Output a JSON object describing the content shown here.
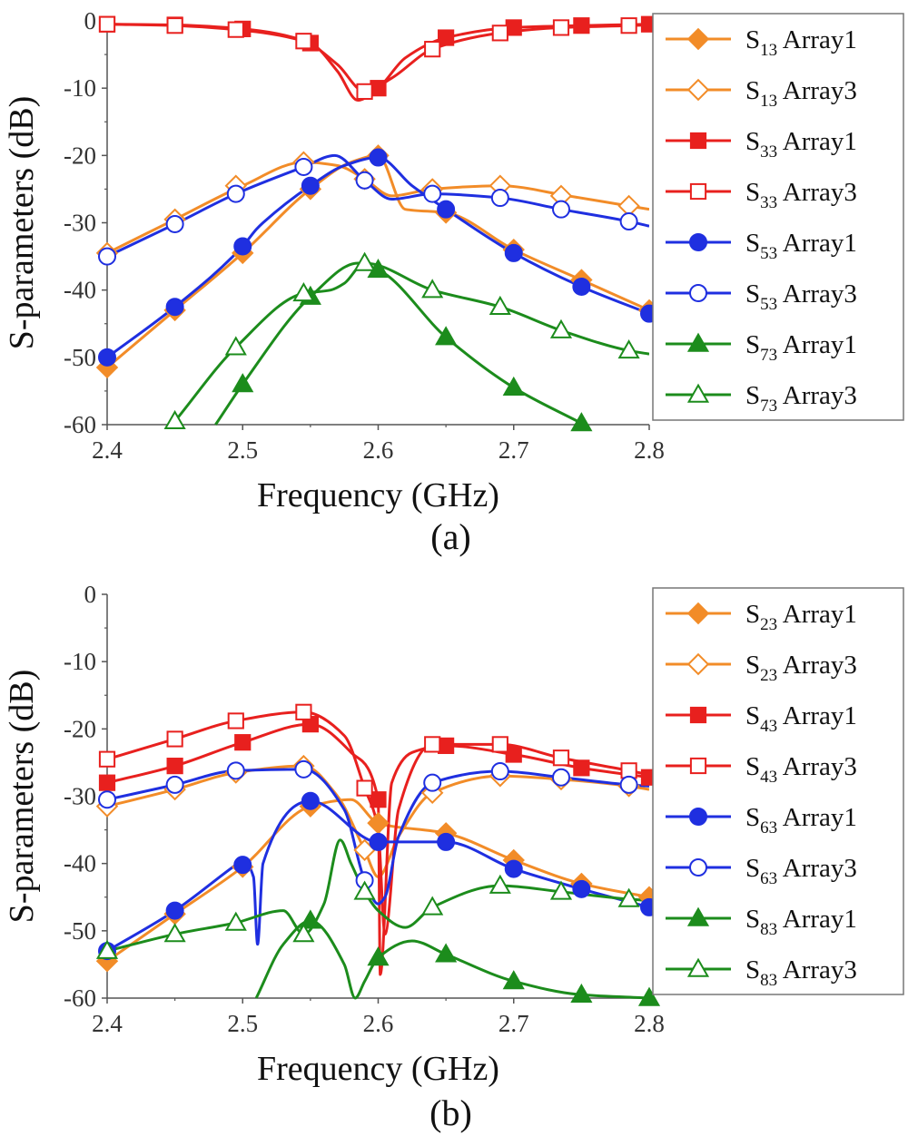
{
  "chart_data": [
    {
      "type": "line",
      "panel_label": "(a)",
      "xlabel": "Frequency (GHz)",
      "ylabel": "S-parameters (dB)",
      "xlim": [
        2.4,
        2.8
      ],
      "ylim": [
        -60,
        0
      ],
      "xticks": [
        "2.4",
        "2.5",
        "2.6",
        "2.7",
        "2.8"
      ],
      "yticks": [
        "0",
        "-10",
        "-20",
        "-30",
        "-40",
        "-50",
        "-60"
      ],
      "legend_position": "right",
      "series": [
        {
          "name": "S13 Array1",
          "base": "S",
          "sub": "13",
          "suffix": "Array1",
          "color": "#F28C28",
          "marker": "diamond",
          "filled": true,
          "x": [
            2.4,
            2.45,
            2.5,
            2.55,
            2.58,
            2.6,
            2.62,
            2.65,
            2.7,
            2.75,
            2.8
          ],
          "y": [
            -51.5,
            -43,
            -34.5,
            -25,
            -21,
            -20,
            -28,
            -28.5,
            -34,
            -38.5,
            -43
          ],
          "mx": [
            2.4,
            2.45,
            2.5,
            2.55,
            2.6,
            2.65,
            2.7,
            2.75,
            2.8
          ],
          "my": [
            -51.5,
            -43,
            -34.5,
            -25,
            -20,
            -28.5,
            -34,
            -38.5,
            -43
          ]
        },
        {
          "name": "S13 Array3",
          "base": "S",
          "sub": "13",
          "suffix": "Array3",
          "color": "#F28C28",
          "marker": "diamond",
          "filled": false,
          "x": [
            2.4,
            2.45,
            2.5,
            2.545,
            2.57,
            2.59,
            2.61,
            2.64,
            2.69,
            2.74,
            2.785,
            2.8
          ],
          "y": [
            -34.5,
            -29.5,
            -24.5,
            -21,
            -21.5,
            -23.5,
            -26,
            -25,
            -24.5,
            -26,
            -27.5,
            -28
          ],
          "mx": [
            2.4,
            2.45,
            2.495,
            2.545,
            2.59,
            2.64,
            2.69,
            2.735,
            2.785
          ],
          "my": [
            -34.5,
            -29.5,
            -24.5,
            -21,
            -23.5,
            -25,
            -24.5,
            -26,
            -27.5
          ]
        },
        {
          "name": "S33 Array1",
          "base": "S",
          "sub": "33",
          "suffix": "Array1",
          "color": "#E8201E",
          "marker": "square",
          "filled": true,
          "x": [
            2.4,
            2.45,
            2.5,
            2.55,
            2.57,
            2.585,
            2.6,
            2.62,
            2.65,
            2.7,
            2.75,
            2.8
          ],
          "y": [
            -0.5,
            -0.6,
            -1.2,
            -3.3,
            -7.5,
            -11.8,
            -10,
            -5.5,
            -2.5,
            -1,
            -0.7,
            -0.5
          ],
          "mx": [
            2.4,
            2.45,
            2.5,
            2.55,
            2.6,
            2.65,
            2.7,
            2.75,
            2.8
          ],
          "my": [
            -0.5,
            -0.6,
            -1.2,
            -3.3,
            -10,
            -2.5,
            -1,
            -0.7,
            -0.5
          ]
        },
        {
          "name": "S33 Array3",
          "base": "S",
          "sub": "33",
          "suffix": "Array3",
          "color": "#E8201E",
          "marker": "square",
          "filled": false,
          "x": [
            2.4,
            2.45,
            2.495,
            2.545,
            2.57,
            2.59,
            2.61,
            2.64,
            2.69,
            2.735,
            2.785,
            2.8
          ],
          "y": [
            -0.5,
            -0.7,
            -1.3,
            -3,
            -6.5,
            -10.5,
            -8.5,
            -4.2,
            -1.8,
            -1,
            -0.7,
            -0.6
          ],
          "mx": [
            2.4,
            2.45,
            2.495,
            2.545,
            2.59,
            2.64,
            2.69,
            2.735,
            2.785
          ],
          "my": [
            -0.5,
            -0.7,
            -1.3,
            -3,
            -10.5,
            -4.2,
            -1.8,
            -1,
            -0.7
          ]
        },
        {
          "name": "S53 Array1",
          "base": "S",
          "sub": "53",
          "suffix": "Array1",
          "color": "#1F2FE0",
          "marker": "circle",
          "filled": true,
          "x": [
            2.4,
            2.45,
            2.5,
            2.51,
            2.515,
            2.55,
            2.575,
            2.6,
            2.625,
            2.65,
            2.7,
            2.75,
            2.8
          ],
          "y": [
            -50,
            -42.5,
            -33.5,
            -31,
            -30,
            -24.5,
            -21.5,
            -20.3,
            -24.5,
            -28,
            -34.5,
            -39.5,
            -43.5
          ],
          "mx": [
            2.4,
            2.45,
            2.5,
            2.55,
            2.6,
            2.65,
            2.7,
            2.75,
            2.8
          ],
          "my": [
            -50,
            -42.5,
            -33.5,
            -24.5,
            -20.3,
            -28,
            -34.5,
            -39.5,
            -43.5
          ]
        },
        {
          "name": "S53 Array3",
          "base": "S",
          "sub": "53",
          "suffix": "Array3",
          "color": "#1F2FE0",
          "marker": "circle",
          "filled": false,
          "x": [
            2.4,
            2.45,
            2.495,
            2.545,
            2.568,
            2.59,
            2.61,
            2.64,
            2.69,
            2.735,
            2.785,
            2.8
          ],
          "y": [
            -35,
            -30.2,
            -25.7,
            -21.7,
            -20,
            -23.7,
            -26.5,
            -25.7,
            -26.3,
            -28,
            -29.8,
            -30.5
          ],
          "mx": [
            2.4,
            2.45,
            2.495,
            2.545,
            2.59,
            2.64,
            2.69,
            2.735,
            2.785
          ],
          "my": [
            -35,
            -30.2,
            -25.7,
            -21.7,
            -23.7,
            -25.7,
            -26.3,
            -28,
            -29.8
          ]
        },
        {
          "name": "S73 Array1",
          "base": "S",
          "sub": "73",
          "suffix": "Array1",
          "color": "#1C8C1C",
          "marker": "triangle",
          "filled": true,
          "x": [
            2.48,
            2.5,
            2.55,
            2.585,
            2.6,
            2.65,
            2.7,
            2.75
          ],
          "y": [
            -60,
            -54,
            -41,
            -36,
            -37,
            -47,
            -54.5,
            -59.8
          ],
          "mx": [
            2.5,
            2.55,
            2.6,
            2.65,
            2.7,
            2.75
          ],
          "my": [
            -54,
            -41,
            -37,
            -47,
            -54.5,
            -59.8
          ]
        },
        {
          "name": "S73 Array3",
          "base": "S",
          "sub": "73",
          "suffix": "Array3",
          "color": "#1C8C1C",
          "marker": "triangle",
          "filled": false,
          "x": [
            2.45,
            2.495,
            2.545,
            2.565,
            2.575,
            2.59,
            2.64,
            2.69,
            2.735,
            2.785,
            2.8
          ],
          "y": [
            -59.5,
            -48.5,
            -40.5,
            -40,
            -39,
            -36,
            -40,
            -42.5,
            -46,
            -49,
            -49.5
          ],
          "mx": [
            2.45,
            2.495,
            2.545,
            2.59,
            2.64,
            2.69,
            2.735,
            2.785
          ],
          "my": [
            -59.5,
            -48.5,
            -40.5,
            -36,
            -40,
            -42.5,
            -46,
            -49
          ]
        }
      ]
    },
    {
      "type": "line",
      "panel_label": "(b)",
      "xlabel": "Frequency (GHz)",
      "ylabel": "S-parameters (dB)",
      "xlim": [
        2.4,
        2.8
      ],
      "ylim": [
        -60,
        0
      ],
      "xticks": [
        "2.4",
        "2.5",
        "2.6",
        "2.7",
        "2.8"
      ],
      "yticks": [
        "0",
        "-10",
        "-20",
        "-30",
        "-40",
        "-50",
        "-60"
      ],
      "legend_position": "right",
      "series": [
        {
          "name": "S23 Array1",
          "base": "S",
          "sub": "23",
          "suffix": "Array1",
          "color": "#F28C28",
          "marker": "diamond",
          "filled": true,
          "x": [
            2.4,
            2.45,
            2.5,
            2.55,
            2.58,
            2.6,
            2.65,
            2.7,
            2.75,
            2.8
          ],
          "y": [
            -54.5,
            -47.5,
            -40.5,
            -31.5,
            -30.5,
            -34,
            -35.5,
            -39.5,
            -43,
            -45
          ],
          "mx": [
            2.4,
            2.45,
            2.5,
            2.55,
            2.6,
            2.65,
            2.7,
            2.75,
            2.8
          ],
          "my": [
            -54.5,
            -47.5,
            -40.5,
            -31.5,
            -34,
            -35.5,
            -39.5,
            -43,
            -45
          ]
        },
        {
          "name": "S23 Array3",
          "base": "S",
          "sub": "23",
          "suffix": "Array3",
          "color": "#F28C28",
          "marker": "diamond",
          "filled": false,
          "x": [
            2.4,
            2.45,
            2.495,
            2.545,
            2.57,
            2.59,
            2.6,
            2.615,
            2.64,
            2.69,
            2.735,
            2.785,
            2.8
          ],
          "y": [
            -31.5,
            -29,
            -26.5,
            -25.5,
            -30,
            -38,
            -42,
            -36,
            -29.5,
            -27,
            -27.5,
            -28.5,
            -29
          ],
          "mx": [
            2.4,
            2.45,
            2.495,
            2.545,
            2.59,
            2.64,
            2.69,
            2.735,
            2.785
          ],
          "my": [
            -31.5,
            -29,
            -26.5,
            -25.5,
            -38,
            -29.5,
            -27,
            -27.5,
            -28.5
          ]
        },
        {
          "name": "S43 Array1",
          "base": "S",
          "sub": "43",
          "suffix": "Array1",
          "color": "#E8201E",
          "marker": "square",
          "filled": true,
          "x": [
            2.4,
            2.45,
            2.5,
            2.55,
            2.58,
            2.6,
            2.6015,
            2.61,
            2.625,
            2.65,
            2.7,
            2.75,
            2.8
          ],
          "y": [
            -28,
            -25.5,
            -22,
            -19.3,
            -23.5,
            -30.5,
            -56.5,
            -28,
            -23.5,
            -22.5,
            -23.8,
            -25.8,
            -27.2
          ],
          "mx": [
            2.4,
            2.45,
            2.5,
            2.55,
            2.6,
            2.65,
            2.7,
            2.75,
            2.8
          ],
          "my": [
            -28,
            -25.5,
            -22,
            -19.3,
            -30.5,
            -22.5,
            -23.8,
            -25.8,
            -27.2
          ]
        },
        {
          "name": "S43 Array3",
          "base": "S",
          "sub": "43",
          "suffix": "Array3",
          "color": "#E8201E",
          "marker": "square",
          "filled": false,
          "x": [
            2.4,
            2.45,
            2.495,
            2.545,
            2.575,
            2.59,
            2.6,
            2.605,
            2.615,
            2.64,
            2.69,
            2.735,
            2.785,
            2.8
          ],
          "y": [
            -24.5,
            -21.5,
            -18.8,
            -17.5,
            -21,
            -28.8,
            -35,
            -50.5,
            -32,
            -22.3,
            -22.3,
            -24.3,
            -26.2,
            -26.8
          ],
          "mx": [
            2.4,
            2.45,
            2.495,
            2.545,
            2.59,
            2.64,
            2.69,
            2.735,
            2.785
          ],
          "my": [
            -24.5,
            -21.5,
            -18.8,
            -17.5,
            -28.8,
            -22.3,
            -22.3,
            -24.3,
            -26.2
          ]
        },
        {
          "name": "S63 Array1",
          "base": "S",
          "sub": "63",
          "suffix": "Array1",
          "color": "#1F2FE0",
          "marker": "circle",
          "filled": true,
          "x": [
            2.4,
            2.45,
            2.495,
            2.5,
            2.508,
            2.511,
            2.515,
            2.55,
            2.6,
            2.65,
            2.7,
            2.75,
            2.8
          ],
          "y": [
            -53,
            -47,
            -40.2,
            -39.5,
            -42,
            -52,
            -40,
            -30.7,
            -36.8,
            -36.8,
            -40.8,
            -43.8,
            -46.5
          ],
          "mx": [
            2.4,
            2.45,
            2.5,
            2.55,
            2.6,
            2.65,
            2.7,
            2.75,
            2.8
          ],
          "my": [
            -53,
            -47,
            -40.2,
            -30.7,
            -36.8,
            -36.8,
            -40.8,
            -43.8,
            -46.5
          ]
        },
        {
          "name": "S63 Array3",
          "base": "S",
          "sub": "63",
          "suffix": "Array3",
          "color": "#1F2FE0",
          "marker": "circle",
          "filled": false,
          "x": [
            2.4,
            2.45,
            2.495,
            2.545,
            2.575,
            2.59,
            2.6,
            2.605,
            2.615,
            2.64,
            2.69,
            2.735,
            2.785,
            2.8
          ],
          "y": [
            -30.5,
            -28.3,
            -26.2,
            -26,
            -32,
            -42.5,
            -46,
            -45,
            -36,
            -28,
            -26.3,
            -27.2,
            -28.3,
            -28.5
          ],
          "mx": [
            2.4,
            2.45,
            2.495,
            2.545,
            2.59,
            2.64,
            2.69,
            2.735,
            2.785
          ],
          "my": [
            -30.5,
            -28.3,
            -26.2,
            -26,
            -42.5,
            -28,
            -26.3,
            -27.2,
            -28.3
          ]
        },
        {
          "name": "S83 Array1",
          "base": "S",
          "sub": "83",
          "suffix": "Array1",
          "color": "#1C8C1C",
          "marker": "triangle",
          "filled": true,
          "x": [
            2.51,
            2.53,
            2.55,
            2.575,
            2.583,
            2.59,
            2.6,
            2.625,
            2.65,
            2.7,
            2.75,
            2.8
          ],
          "y": [
            -60,
            -52,
            -48.5,
            -55,
            -60,
            -57.5,
            -54,
            -51.5,
            -53.5,
            -57.5,
            -59.5,
            -60
          ],
          "mx": [
            2.55,
            2.6,
            2.65,
            2.7,
            2.75,
            2.8
          ],
          "my": [
            -48.5,
            -54,
            -53.5,
            -57.5,
            -59.5,
            -60
          ]
        },
        {
          "name": "S83 Array3",
          "base": "S",
          "sub": "83",
          "suffix": "Array3",
          "color": "#1C8C1C",
          "marker": "triangle",
          "filled": false,
          "x": [
            2.4,
            2.45,
            2.495,
            2.53,
            2.545,
            2.56,
            2.572,
            2.58,
            2.59,
            2.6,
            2.62,
            2.64,
            2.69,
            2.735,
            2.785,
            2.8
          ],
          "y": [
            -53,
            -50.5,
            -48.8,
            -47,
            -50.5,
            -46,
            -36.5,
            -40,
            -44.2,
            -47,
            -49.5,
            -46.5,
            -43.3,
            -44.2,
            -45.3,
            -45.5
          ],
          "mx": [
            2.4,
            2.45,
            2.495,
            2.545,
            2.59,
            2.64,
            2.69,
            2.735,
            2.785
          ],
          "my": [
            -53,
            -50.5,
            -48.8,
            -50.5,
            -44.2,
            -46.5,
            -43.3,
            -44.2,
            -45.3
          ]
        }
      ]
    }
  ]
}
